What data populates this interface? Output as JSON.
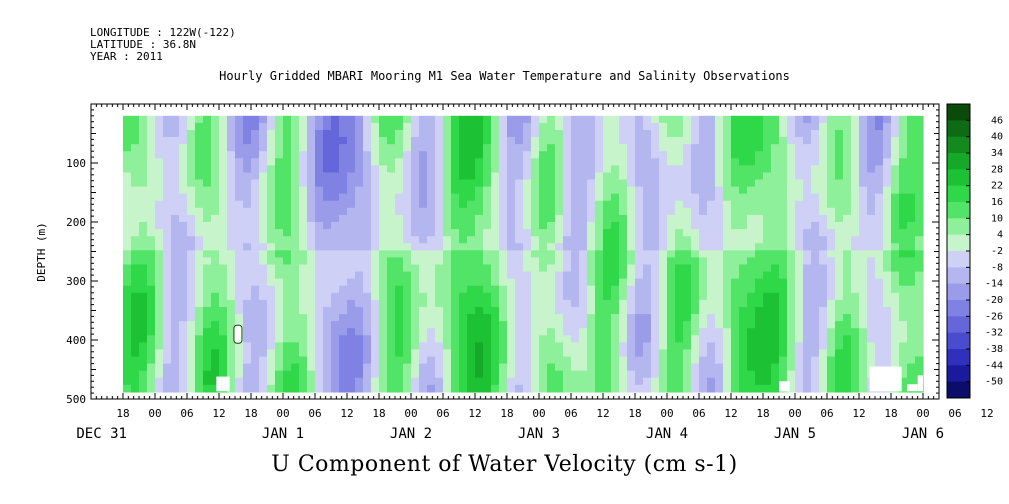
{
  "header": {
    "longitude": "LONGITUDE : 122W(-122)",
    "latitude": "LATITUDE : 36.8N",
    "year": "YEAR : 2011"
  },
  "chart_data": {
    "type": "heatmap",
    "title": "Hourly Gridded MBARI Mooring M1 Sea Water Temperature and Salinity Observations",
    "xlabel": "U Component of Water Velocity (cm s-1)",
    "ylabel": "DEPTH (m)",
    "ylim": [
      500,
      0
    ],
    "y_ticks": [
      100,
      200,
      300,
      400,
      500
    ],
    "x_hour_ticks": [
      "18",
      "00",
      "06",
      "12",
      "18",
      "00",
      "06",
      "12",
      "18",
      "00",
      "06",
      "12",
      "18",
      "00",
      "06",
      "12",
      "18",
      "00",
      "06",
      "12",
      "18",
      "00",
      "06",
      "12",
      "18",
      "00",
      "06",
      "12",
      "18",
      "00"
    ],
    "x_day_labels": [
      "DEC 31",
      "JAN  1",
      "JAN  2",
      "JAN  3",
      "JAN  4",
      "JAN  5",
      "JAN  6"
    ],
    "x_range": [
      "DEC 31 12:00",
      "JAN 7 03:00"
    ],
    "data_range": [
      "DEC 31 18:00",
      "JAN 7 00:00"
    ],
    "depth_range": [
      20,
      487
    ],
    "colorbar": {
      "levels": [
        46,
        40,
        34,
        28,
        22,
        16,
        10,
        4,
        -2,
        -8,
        -14,
        -20,
        -26,
        -32,
        -38,
        -44,
        -50
      ],
      "colors": [
        "#0a4a0a",
        "#0e6a14",
        "#128a1e",
        "#16a828",
        "#1cc234",
        "#2ed848",
        "#52e466",
        "#8ef09a",
        "#c8f4cc",
        "#cfd0f6",
        "#b4b6f0",
        "#9a9cea",
        "#7f82e2",
        "#6466da",
        "#4a4ccf",
        "#2f30bd",
        "#1a1a9c",
        "#0c0c6a"
      ]
    },
    "dominant_pattern": "alternating vertical bands of positive (green) and negative (blue) U velocity",
    "missing_data_color": "#ffffff"
  }
}
